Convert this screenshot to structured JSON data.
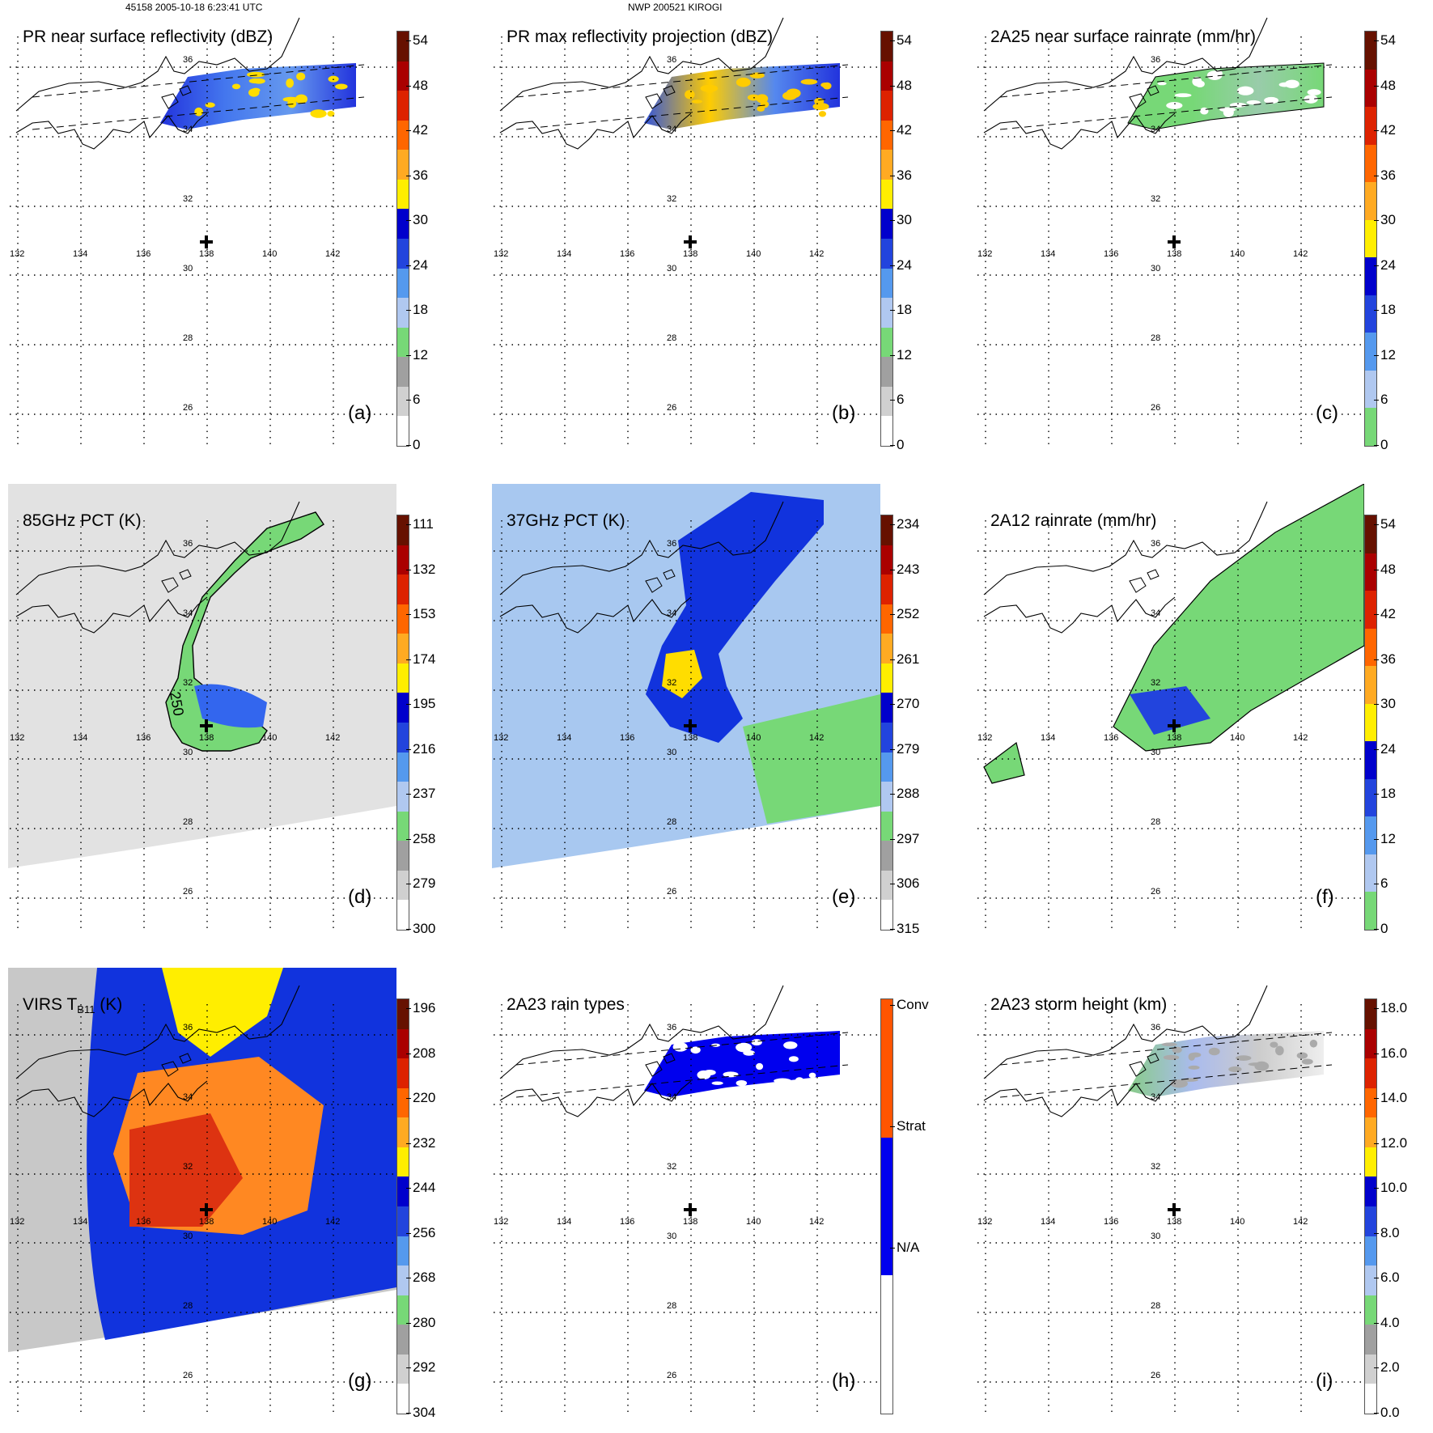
{
  "header": {
    "orbit_info": "45158 2005-10-18 6:23:41 UTC",
    "storm_info": "NWP 200521 KIROGI"
  },
  "map_grid": {
    "lon_labels": [
      "132",
      "134",
      "136",
      "138",
      "140",
      "142"
    ],
    "lat_labels": [
      "36",
      "34",
      "32",
      "30",
      "28",
      "26"
    ]
  },
  "panels": [
    {
      "id": "a",
      "label": "(a)",
      "title": "PR near surface reflectivity (dBZ)",
      "type": "pr",
      "colorbar": {
        "ticks": [
          "54",
          "48",
          "42",
          "36",
          "30",
          "24",
          "18",
          "12",
          "6",
          "0"
        ],
        "colors": [
          "#ffffff",
          "#d0d0d0",
          "#a0a0a0",
          "#77d877",
          "#b0c8f0",
          "#5599ee",
          "#2244dd",
          "#0000cc",
          "#ffee00",
          "#ffaa22",
          "#ff6600",
          "#dd2200",
          "#aa0000",
          "#661100"
        ]
      }
    },
    {
      "id": "b",
      "label": "(b)",
      "title": "PR max reflectivity projection (dBZ)",
      "type": "pr-max",
      "colorbar": {
        "ticks": [
          "54",
          "48",
          "42",
          "36",
          "30",
          "24",
          "18",
          "12",
          "6",
          "0"
        ],
        "colors": [
          "#ffffff",
          "#d0d0d0",
          "#a0a0a0",
          "#77d877",
          "#b0c8f0",
          "#5599ee",
          "#2244dd",
          "#0000cc",
          "#ffee00",
          "#ffaa22",
          "#ff6600",
          "#dd2200",
          "#aa0000",
          "#661100"
        ]
      }
    },
    {
      "id": "c",
      "label": "(c)",
      "title": "2A25 near surface rainrate (mm/hr)",
      "type": "pr-rain",
      "colorbar": {
        "ticks": [
          "54",
          "48",
          "42",
          "36",
          "30",
          "24",
          "18",
          "12",
          "6",
          "0"
        ],
        "colors": [
          "#77d877",
          "#b0c8f0",
          "#5599ee",
          "#2244dd",
          "#0000cc",
          "#ffee00",
          "#ffaa22",
          "#ff6600",
          "#dd2200",
          "#aa0000",
          "#661100"
        ]
      }
    },
    {
      "id": "d",
      "label": "(d)",
      "title": "85GHz PCT (K)",
      "type": "pct85",
      "contour_label": "250",
      "colorbar": {
        "ticks": [
          "111",
          "132",
          "153",
          "174",
          "195",
          "216",
          "237",
          "258",
          "279",
          "300"
        ],
        "colors": [
          "#ffffff",
          "#d0d0d0",
          "#a0a0a0",
          "#77d877",
          "#b0c8f0",
          "#5599ee",
          "#2244dd",
          "#0000cc",
          "#ffee00",
          "#ffaa22",
          "#ff6600",
          "#dd2200",
          "#aa0000",
          "#661100"
        ]
      }
    },
    {
      "id": "e",
      "label": "(e)",
      "title": "37GHz PCT (K)",
      "type": "pct37",
      "colorbar": {
        "ticks": [
          "234",
          "243",
          "252",
          "261",
          "270",
          "279",
          "288",
          "297",
          "306",
          "315"
        ],
        "colors": [
          "#ffffff",
          "#d0d0d0",
          "#a0a0a0",
          "#77d877",
          "#b0c8f0",
          "#5599ee",
          "#2244dd",
          "#0000cc",
          "#ffee00",
          "#ffaa22",
          "#ff6600",
          "#dd2200",
          "#aa0000",
          "#661100"
        ]
      }
    },
    {
      "id": "f",
      "label": "(f)",
      "title": "2A12 rainrate (mm/hr)",
      "type": "tmi-rain",
      "colorbar": {
        "ticks": [
          "54",
          "48",
          "42",
          "36",
          "30",
          "24",
          "18",
          "12",
          "6",
          "0"
        ],
        "colors": [
          "#77d877",
          "#b0c8f0",
          "#5599ee",
          "#2244dd",
          "#0000cc",
          "#ffee00",
          "#ffaa22",
          "#ff6600",
          "#dd2200",
          "#aa0000",
          "#661100"
        ]
      }
    },
    {
      "id": "g",
      "label": "(g)",
      "title_main": "VIRS T",
      "title_sub": "B11",
      "title_unit": " (K)",
      "type": "virs",
      "colorbar": {
        "ticks": [
          "196",
          "208",
          "220",
          "232",
          "244",
          "256",
          "268",
          "280",
          "292",
          "304"
        ],
        "colors": [
          "#ffffff",
          "#d0d0d0",
          "#a0a0a0",
          "#77d877",
          "#b0c8f0",
          "#5599ee",
          "#2244dd",
          "#0000cc",
          "#ffee00",
          "#ffaa22",
          "#ff6600",
          "#dd2200",
          "#aa0000",
          "#661100"
        ]
      }
    },
    {
      "id": "h",
      "label": "(h)",
      "title": "2A23 rain types",
      "type": "raintype",
      "colorbar": {
        "ticks": [
          "Conv",
          "Strat",
          "N/A"
        ],
        "colors": [
          "#ffffff",
          "#0000ee",
          "#ff5500"
        ]
      }
    },
    {
      "id": "i",
      "label": "(i)",
      "title": "2A23 storm height (km)",
      "type": "height",
      "colorbar": {
        "ticks": [
          "18.0",
          "16.0",
          "14.0",
          "12.0",
          "10.0",
          "8.0",
          "6.0",
          "4.0",
          "2.0",
          "0.0"
        ],
        "colors": [
          "#ffffff",
          "#d0d0d0",
          "#a0a0a0",
          "#77d877",
          "#b0c8f0",
          "#5599ee",
          "#2244dd",
          "#0000cc",
          "#ffee00",
          "#ffaa22",
          "#ff6600",
          "#dd2200",
          "#aa0000",
          "#661100"
        ]
      }
    }
  ]
}
